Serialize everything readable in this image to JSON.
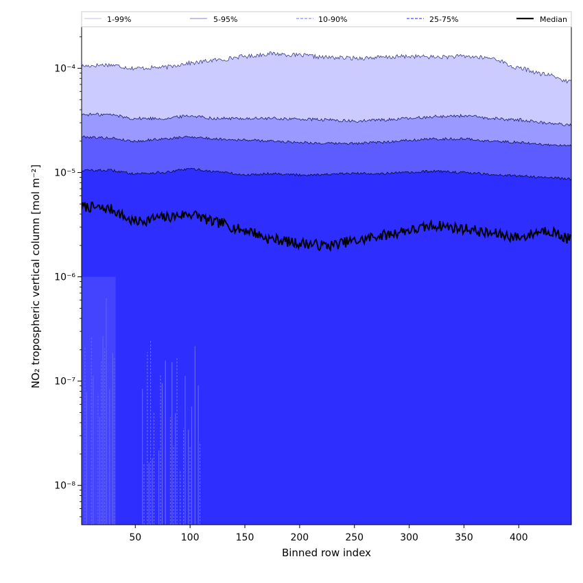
{
  "chart_data": {
    "type": "area",
    "title": "",
    "xlabel": "Binned row index",
    "ylabel": "NO₂ tropospheric vertical column [mol m⁻²]",
    "y_scale": "log",
    "xlim": [
      1,
      448
    ],
    "ylim": [
      4.2e-09,
      0.00025
    ],
    "x_ticks": [
      50,
      100,
      150,
      200,
      250,
      300,
      350,
      400
    ],
    "y_ticks": [
      {
        "value": 1e-08,
        "label": "10⁻⁸"
      },
      {
        "value": 1e-07,
        "label": "10⁻⁷"
      },
      {
        "value": 1e-06,
        "label": "10⁻⁶"
      },
      {
        "value": 1e-05,
        "label": "10⁻⁵"
      },
      {
        "value": 0.0001,
        "label": "10⁻⁴"
      }
    ],
    "grid": false,
    "legend_placement": "top",
    "x": [
      1,
      25,
      50,
      75,
      100,
      125,
      150,
      175,
      200,
      225,
      250,
      275,
      300,
      325,
      350,
      375,
      400,
      425,
      448
    ],
    "bands": [
      {
        "name": "1-99%",
        "color": "#cccbff",
        "line_color": "#3a3a8a",
        "line_style": "solid",
        "lower": [
          6.5e-07,
          3.5e-07,
          null,
          2.5e-07,
          null,
          null,
          null,
          null,
          null,
          null,
          null,
          null,
          null,
          null,
          null,
          null,
          null,
          null,
          null
        ],
        "upper": [
          0.000105,
          0.000108,
          0.0001,
          0.000102,
          0.000112,
          0.00012,
          0.00013,
          0.000138,
          0.000133,
          0.000127,
          0.000125,
          0.000127,
          0.00013,
          0.000128,
          0.00013,
          0.000125,
          0.0001,
          8.7e-05,
          7.4e-05
        ]
      },
      {
        "name": "5-95%",
        "color": "#9999ff",
        "line_color": "#1a1a6a",
        "line_style": "solid",
        "lower": [
          null,
          null,
          null,
          null,
          null,
          null,
          null,
          null,
          null,
          null,
          null,
          null,
          null,
          null,
          null,
          null,
          null,
          null,
          null
        ],
        "upper": [
          3.6e-05,
          3.6e-05,
          3.3e-05,
          3.3e-05,
          3.5e-05,
          3.3e-05,
          3.3e-05,
          3.3e-05,
          3.25e-05,
          3.2e-05,
          3.1e-05,
          3.2e-05,
          3.3e-05,
          3.45e-05,
          3.5e-05,
          3.3e-05,
          3.2e-05,
          3e-05,
          2.85e-05
        ]
      },
      {
        "name": "10-90%",
        "color": "#5c5cff",
        "line_color": "#101050",
        "line_style": "dashed",
        "lower": [
          null,
          null,
          null,
          null,
          null,
          null,
          null,
          null,
          null,
          null,
          null,
          null,
          null,
          null,
          null,
          null,
          null,
          null,
          null
        ],
        "upper": [
          2.2e-05,
          2.15e-05,
          2e-05,
          2.1e-05,
          2.2e-05,
          2.1e-05,
          2.05e-05,
          2e-05,
          1.95e-05,
          1.9e-05,
          1.9e-05,
          1.95e-05,
          2.05e-05,
          2.1e-05,
          2.1e-05,
          2e-05,
          1.95e-05,
          1.85e-05,
          1.8e-05
        ]
      },
      {
        "name": "25-75%",
        "color": "#2e2eff",
        "line_color": "#0a0a30",
        "line_style": "dashed",
        "lower": [
          null,
          null,
          null,
          null,
          null,
          null,
          null,
          null,
          null,
          null,
          null,
          null,
          null,
          null,
          null,
          null,
          null,
          null,
          null
        ],
        "upper": [
          1.05e-05,
          1.05e-05,
          9.8e-06,
          1e-05,
          1.08e-05,
          1.02e-05,
          9.5e-06,
          9.8e-06,
          9.5e-06,
          9.6e-06,
          9.8e-06,
          9.8e-06,
          1e-05,
          1.03e-05,
          1e-05,
          9.6e-06,
          9.3e-06,
          9e-06,
          8.7e-06
        ]
      }
    ],
    "series": [
      {
        "name": "Median",
        "color": "#000000",
        "values": [
          4.7e-06,
          4.5e-06,
          3.4e-06,
          3.7e-06,
          4e-06,
          3.3e-06,
          2.8e-06,
          2.3e-06,
          2.1e-06,
          2e-06,
          2.2e-06,
          2.5e-06,
          2.8e-06,
          3.1e-06,
          2.9e-06,
          2.6e-06,
          2.4e-06,
          2.8e-06,
          2.3e-06
        ]
      }
    ],
    "legend": [
      {
        "label": "1-99%",
        "style": "solid",
        "color": "#cfcfe8"
      },
      {
        "label": "5-95%",
        "style": "solid",
        "color": "#9c9cd8"
      },
      {
        "label": "10-90%",
        "style": "dashed",
        "color": "#8a8aff"
      },
      {
        "label": "25-75%",
        "style": "dashed",
        "color": "#4a4aff"
      },
      {
        "label": "Median",
        "style": "solid",
        "color": "#000000"
      }
    ]
  }
}
